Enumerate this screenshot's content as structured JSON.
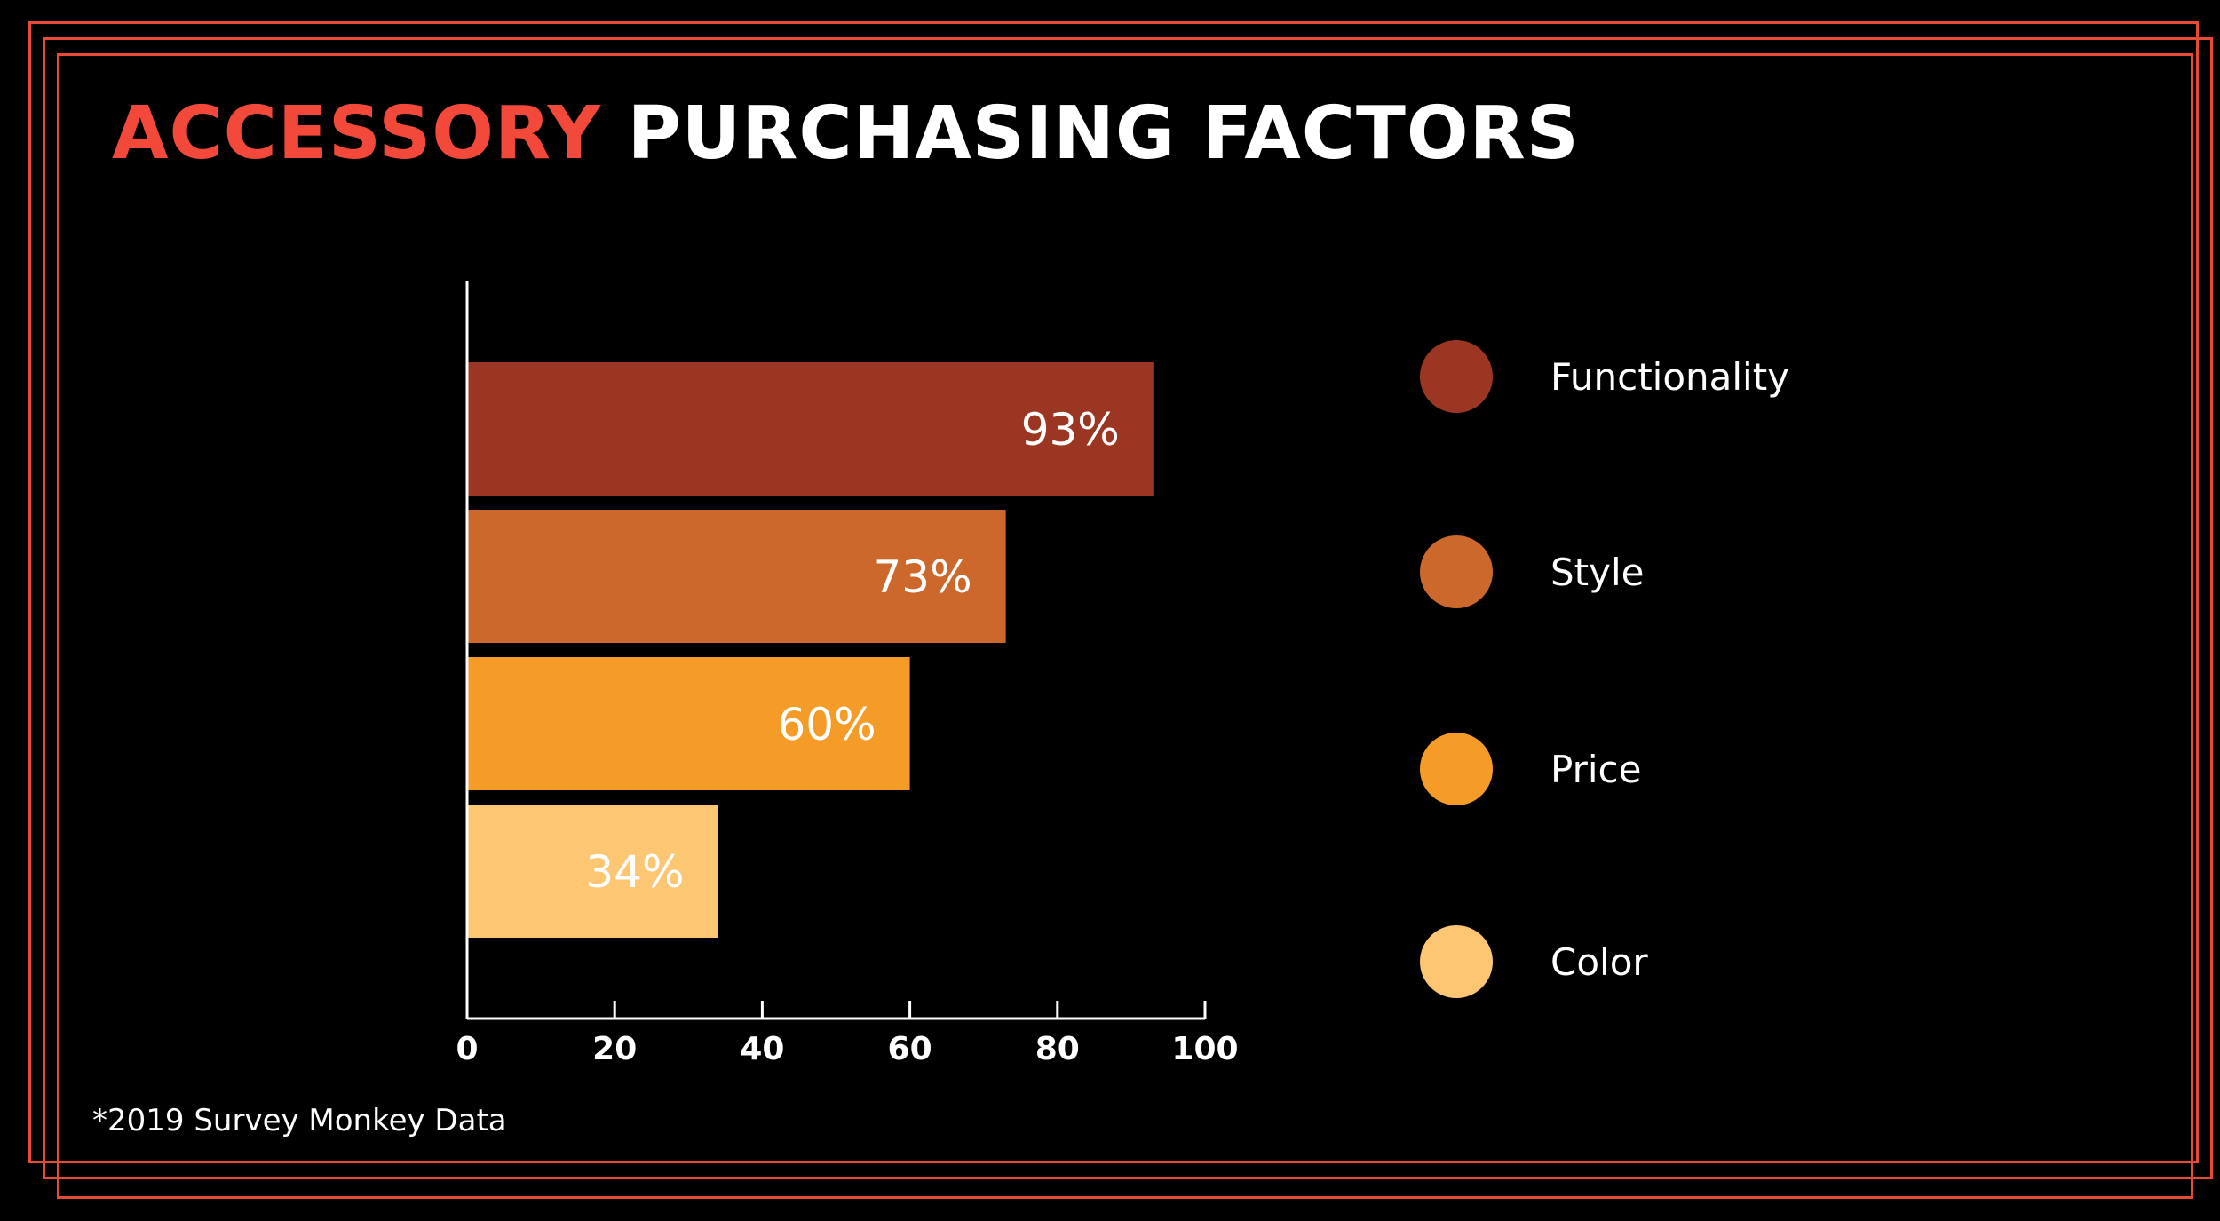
{
  "title": {
    "accent": "ACCESSORY",
    "rest": "PURCHASING FACTORS"
  },
  "footnote": "*2019 Survey Monkey Data",
  "colors": {
    "background": "#000000",
    "frame": "#e84a36",
    "title_accent": "#f2493b",
    "title_rest": "#ffffff"
  },
  "chart_data": {
    "type": "bar",
    "orientation": "horizontal",
    "categories": [
      "Functionality",
      "Style",
      "Price",
      "Color"
    ],
    "values": [
      93,
      73,
      60,
      34
    ],
    "data_labels": [
      "93%",
      "73%",
      "60%",
      "34%"
    ],
    "colors": [
      "#9a3622",
      "#cc682b",
      "#f59b27",
      "#fdc673"
    ],
    "xlim": [
      0,
      100
    ],
    "xticks": [
      0,
      20,
      40,
      60,
      80,
      100
    ],
    "xtick_labels": [
      "0",
      "20",
      "40",
      "60",
      "80",
      "100"
    ],
    "legend": {
      "placement": "right",
      "entries": [
        "Functionality",
        "Style",
        "Price",
        "Color"
      ]
    },
    "grid": false
  }
}
